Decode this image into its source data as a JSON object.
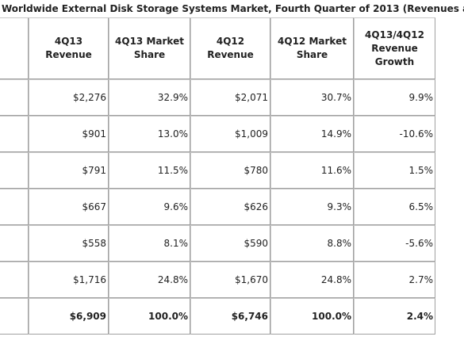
{
  "title": "Worldwide External Disk Storage Systems Market, Fourth Quarter of 2013 (Revenues a",
  "table": {
    "headers": [
      "4Q13 Revenue",
      "4Q13 Market Share",
      "4Q12 Revenue",
      "4Q12 Market Share",
      "4Q13/4Q12 Revenue Growth"
    ],
    "rows": [
      [
        "$2,276",
        "32.9%",
        "$2,071",
        "30.7%",
        "9.9%"
      ],
      [
        "$901",
        "13.0%",
        "$1,009",
        "14.9%",
        "-10.6%"
      ],
      [
        "$791",
        "11.5%",
        "$780",
        "11.6%",
        "1.5%"
      ],
      [
        "$667",
        "9.6%",
        "$626",
        "9.3%",
        "6.5%"
      ],
      [
        "$558",
        "8.1%",
        "$590",
        "8.8%",
        "-5.6%"
      ],
      [
        "$1,716",
        "24.8%",
        "$1,670",
        "24.8%",
        "2.7%"
      ],
      [
        "$6,909",
        "100.0%",
        "$6,746",
        "100.0%",
        "2.4%"
      ]
    ]
  }
}
